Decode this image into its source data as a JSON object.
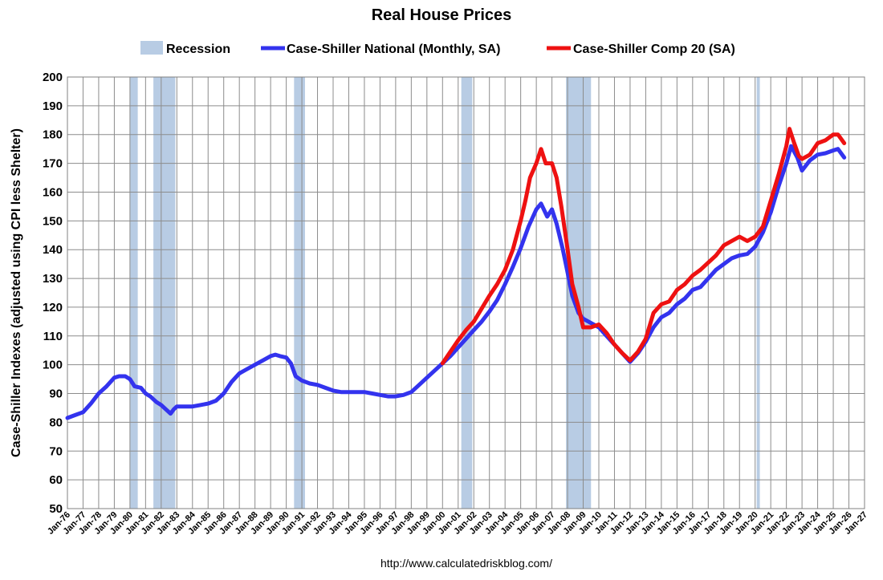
{
  "chart_data": {
    "type": "line",
    "title": "Real House Prices",
    "ylabel": "Case-Shiller Indexes (adjusted using CPI less Shelter)",
    "xlabel": "",
    "ylim": [
      50,
      200
    ],
    "xlim": [
      1976,
      2027
    ],
    "yticks": [
      50,
      60,
      70,
      80,
      90,
      100,
      110,
      120,
      130,
      140,
      150,
      160,
      170,
      180,
      190,
      200
    ],
    "xtick_labels": [
      "Jan-76",
      "Jan-77",
      "Jan-78",
      "Jan-79",
      "Jan-80",
      "Jan-81",
      "Jan-82",
      "Jan-83",
      "Jan-84",
      "Jan-85",
      "Jan-86",
      "Jan-87",
      "Jan-88",
      "Jan-89",
      "Jan-90",
      "Jan-91",
      "Jan-92",
      "Jan-93",
      "Jan-94",
      "Jan-95",
      "Jan-96",
      "Jan-97",
      "Jan-98",
      "Jan-99",
      "Jan-00",
      "Jan-01",
      "Jan-02",
      "Jan-03",
      "Jan-04",
      "Jan-05",
      "Jan-06",
      "Jan-07",
      "Jan-08",
      "Jan-09",
      "Jan-10",
      "Jan-11",
      "Jan-12",
      "Jan-13",
      "Jan-14",
      "Jan-15",
      "Jan-16",
      "Jan-17",
      "Jan-18",
      "Jan-19",
      "Jan-20",
      "Jan-21",
      "Jan-22",
      "Jan-23",
      "Jan-24",
      "Jan-25",
      "Jan-26",
      "Jan-27"
    ],
    "grid": true,
    "legend_position": "top",
    "recession_label": "Recession",
    "recession_color": "#b8cce4",
    "recessions": [
      [
        1980.0,
        1980.5
      ],
      [
        1981.5,
        1982.9
      ],
      [
        1990.5,
        1991.2
      ],
      [
        2001.2,
        2001.9
      ],
      [
        2007.9,
        2009.5
      ],
      [
        2020.1,
        2020.3
      ]
    ],
    "series": [
      {
        "name": "Case-Shiller National (Monthly, SA)",
        "color": "#3333ee",
        "x": [
          1976.0,
          1976.5,
          1977.0,
          1977.5,
          1978.0,
          1978.5,
          1979.0,
          1979.3,
          1979.7,
          1980.0,
          1980.3,
          1980.7,
          1981.0,
          1981.3,
          1981.7,
          1982.0,
          1982.3,
          1982.6,
          1982.8,
          1983.0,
          1983.3,
          1983.6,
          1984.0,
          1984.5,
          1985.0,
          1985.5,
          1986.0,
          1986.5,
          1987.0,
          1987.5,
          1988.0,
          1988.5,
          1989.0,
          1989.3,
          1989.6,
          1990.0,
          1990.3,
          1990.6,
          1991.0,
          1991.5,
          1992.0,
          1992.5,
          1993.0,
          1993.5,
          1994.0,
          1994.5,
          1995.0,
          1995.5,
          1996.0,
          1996.5,
          1997.0,
          1997.5,
          1998.0,
          1998.5,
          1999.0,
          1999.5,
          2000.0,
          2000.5,
          2001.0,
          2001.5,
          2002.0,
          2002.5,
          2003.0,
          2003.5,
          2004.0,
          2004.5,
          2005.0,
          2005.5,
          2006.0,
          2006.3,
          2006.7,
          2007.0,
          2007.3,
          2007.7,
          2008.0,
          2008.3,
          2008.7,
          2009.0,
          2009.5,
          2010.0,
          2010.5,
          2011.0,
          2011.5,
          2012.0,
          2012.5,
          2013.0,
          2013.5,
          2014.0,
          2014.5,
          2015.0,
          2015.5,
          2016.0,
          2016.5,
          2017.0,
          2017.5,
          2018.0,
          2018.5,
          2019.0,
          2019.5,
          2020.0,
          2020.5,
          2021.0,
          2021.5,
          2022.0,
          2022.3,
          2022.7,
          2023.0,
          2023.5,
          2024.0,
          2024.5,
          2025.0,
          2025.3,
          2025.7
        ],
        "values": [
          81.5,
          82.5,
          83.5,
          86.5,
          90.0,
          92.5,
          95.5,
          96.0,
          96.0,
          95.0,
          92.5,
          92.0,
          90.0,
          89.0,
          87.0,
          86.0,
          84.5,
          83.0,
          84.5,
          85.5,
          85.5,
          85.5,
          85.5,
          86.0,
          86.5,
          87.5,
          90.0,
          94.0,
          97.0,
          98.5,
          100.0,
          101.5,
          103.0,
          103.5,
          103.0,
          102.5,
          100.5,
          96.0,
          94.5,
          93.5,
          93.0,
          92.0,
          91.0,
          90.5,
          90.5,
          90.5,
          90.5,
          90.0,
          89.5,
          89.0,
          89.0,
          89.5,
          90.5,
          93.0,
          95.5,
          98.0,
          100.5,
          103.0,
          106.0,
          109.0,
          112.0,
          115.0,
          118.5,
          122.5,
          128.0,
          134.0,
          140.5,
          148.0,
          154.0,
          156.0,
          151.5,
          154.0,
          149.0,
          140.0,
          132.0,
          124.0,
          118.0,
          116.0,
          114.5,
          113.0,
          110.0,
          107.0,
          104.0,
          101.0,
          104.0,
          108.0,
          113.0,
          116.5,
          118.0,
          121.0,
          123.0,
          126.0,
          127.0,
          130.0,
          133.0,
          135.0,
          137.0,
          138.0,
          138.5,
          141.0,
          146.0,
          153.0,
          162.0,
          170.0,
          176.0,
          172.0,
          167.5,
          171.0,
          173.0,
          173.5,
          174.5,
          175.0,
          172.0
        ]
      },
      {
        "name": "Case-Shiller Comp 20  (SA)",
        "color": "#ee1111",
        "x": [
          2000.0,
          2000.5,
          2001.0,
          2001.5,
          2002.0,
          2002.5,
          2003.0,
          2003.5,
          2004.0,
          2004.5,
          2005.0,
          2005.3,
          2005.6,
          2006.0,
          2006.3,
          2006.6,
          2007.0,
          2007.3,
          2007.6,
          2008.0,
          2008.3,
          2008.7,
          2009.0,
          2009.5,
          2010.0,
          2010.5,
          2011.0,
          2011.5,
          2012.0,
          2012.5,
          2013.0,
          2013.5,
          2014.0,
          2014.5,
          2015.0,
          2015.5,
          2016.0,
          2016.5,
          2017.0,
          2017.5,
          2018.0,
          2018.5,
          2019.0,
          2019.5,
          2020.0,
          2020.5,
          2021.0,
          2021.5,
          2022.0,
          2022.2,
          2022.5,
          2022.8,
          2023.0,
          2023.5,
          2024.0,
          2024.5,
          2025.0,
          2025.3,
          2025.7
        ],
        "values": [
          100.5,
          104.5,
          108.5,
          112.0,
          115.0,
          119.5,
          124.0,
          128.0,
          133.0,
          140.0,
          150.0,
          157.0,
          165.0,
          170.0,
          175.0,
          170.0,
          170.0,
          165.0,
          155.0,
          140.0,
          128.0,
          120.0,
          113.0,
          113.0,
          114.0,
          111.0,
          107.0,
          104.0,
          101.5,
          104.5,
          109.0,
          118.0,
          121.0,
          122.0,
          126.0,
          128.0,
          131.0,
          133.0,
          135.5,
          138.0,
          141.5,
          143.0,
          144.5,
          143.0,
          144.5,
          148.0,
          157.0,
          166.0,
          176.0,
          182.0,
          177.0,
          172.5,
          171.5,
          173.0,
          177.0,
          178.0,
          180.0,
          180.0,
          177.0
        ]
      }
    ],
    "source": "http://www.calculatedriskblog.com/"
  }
}
